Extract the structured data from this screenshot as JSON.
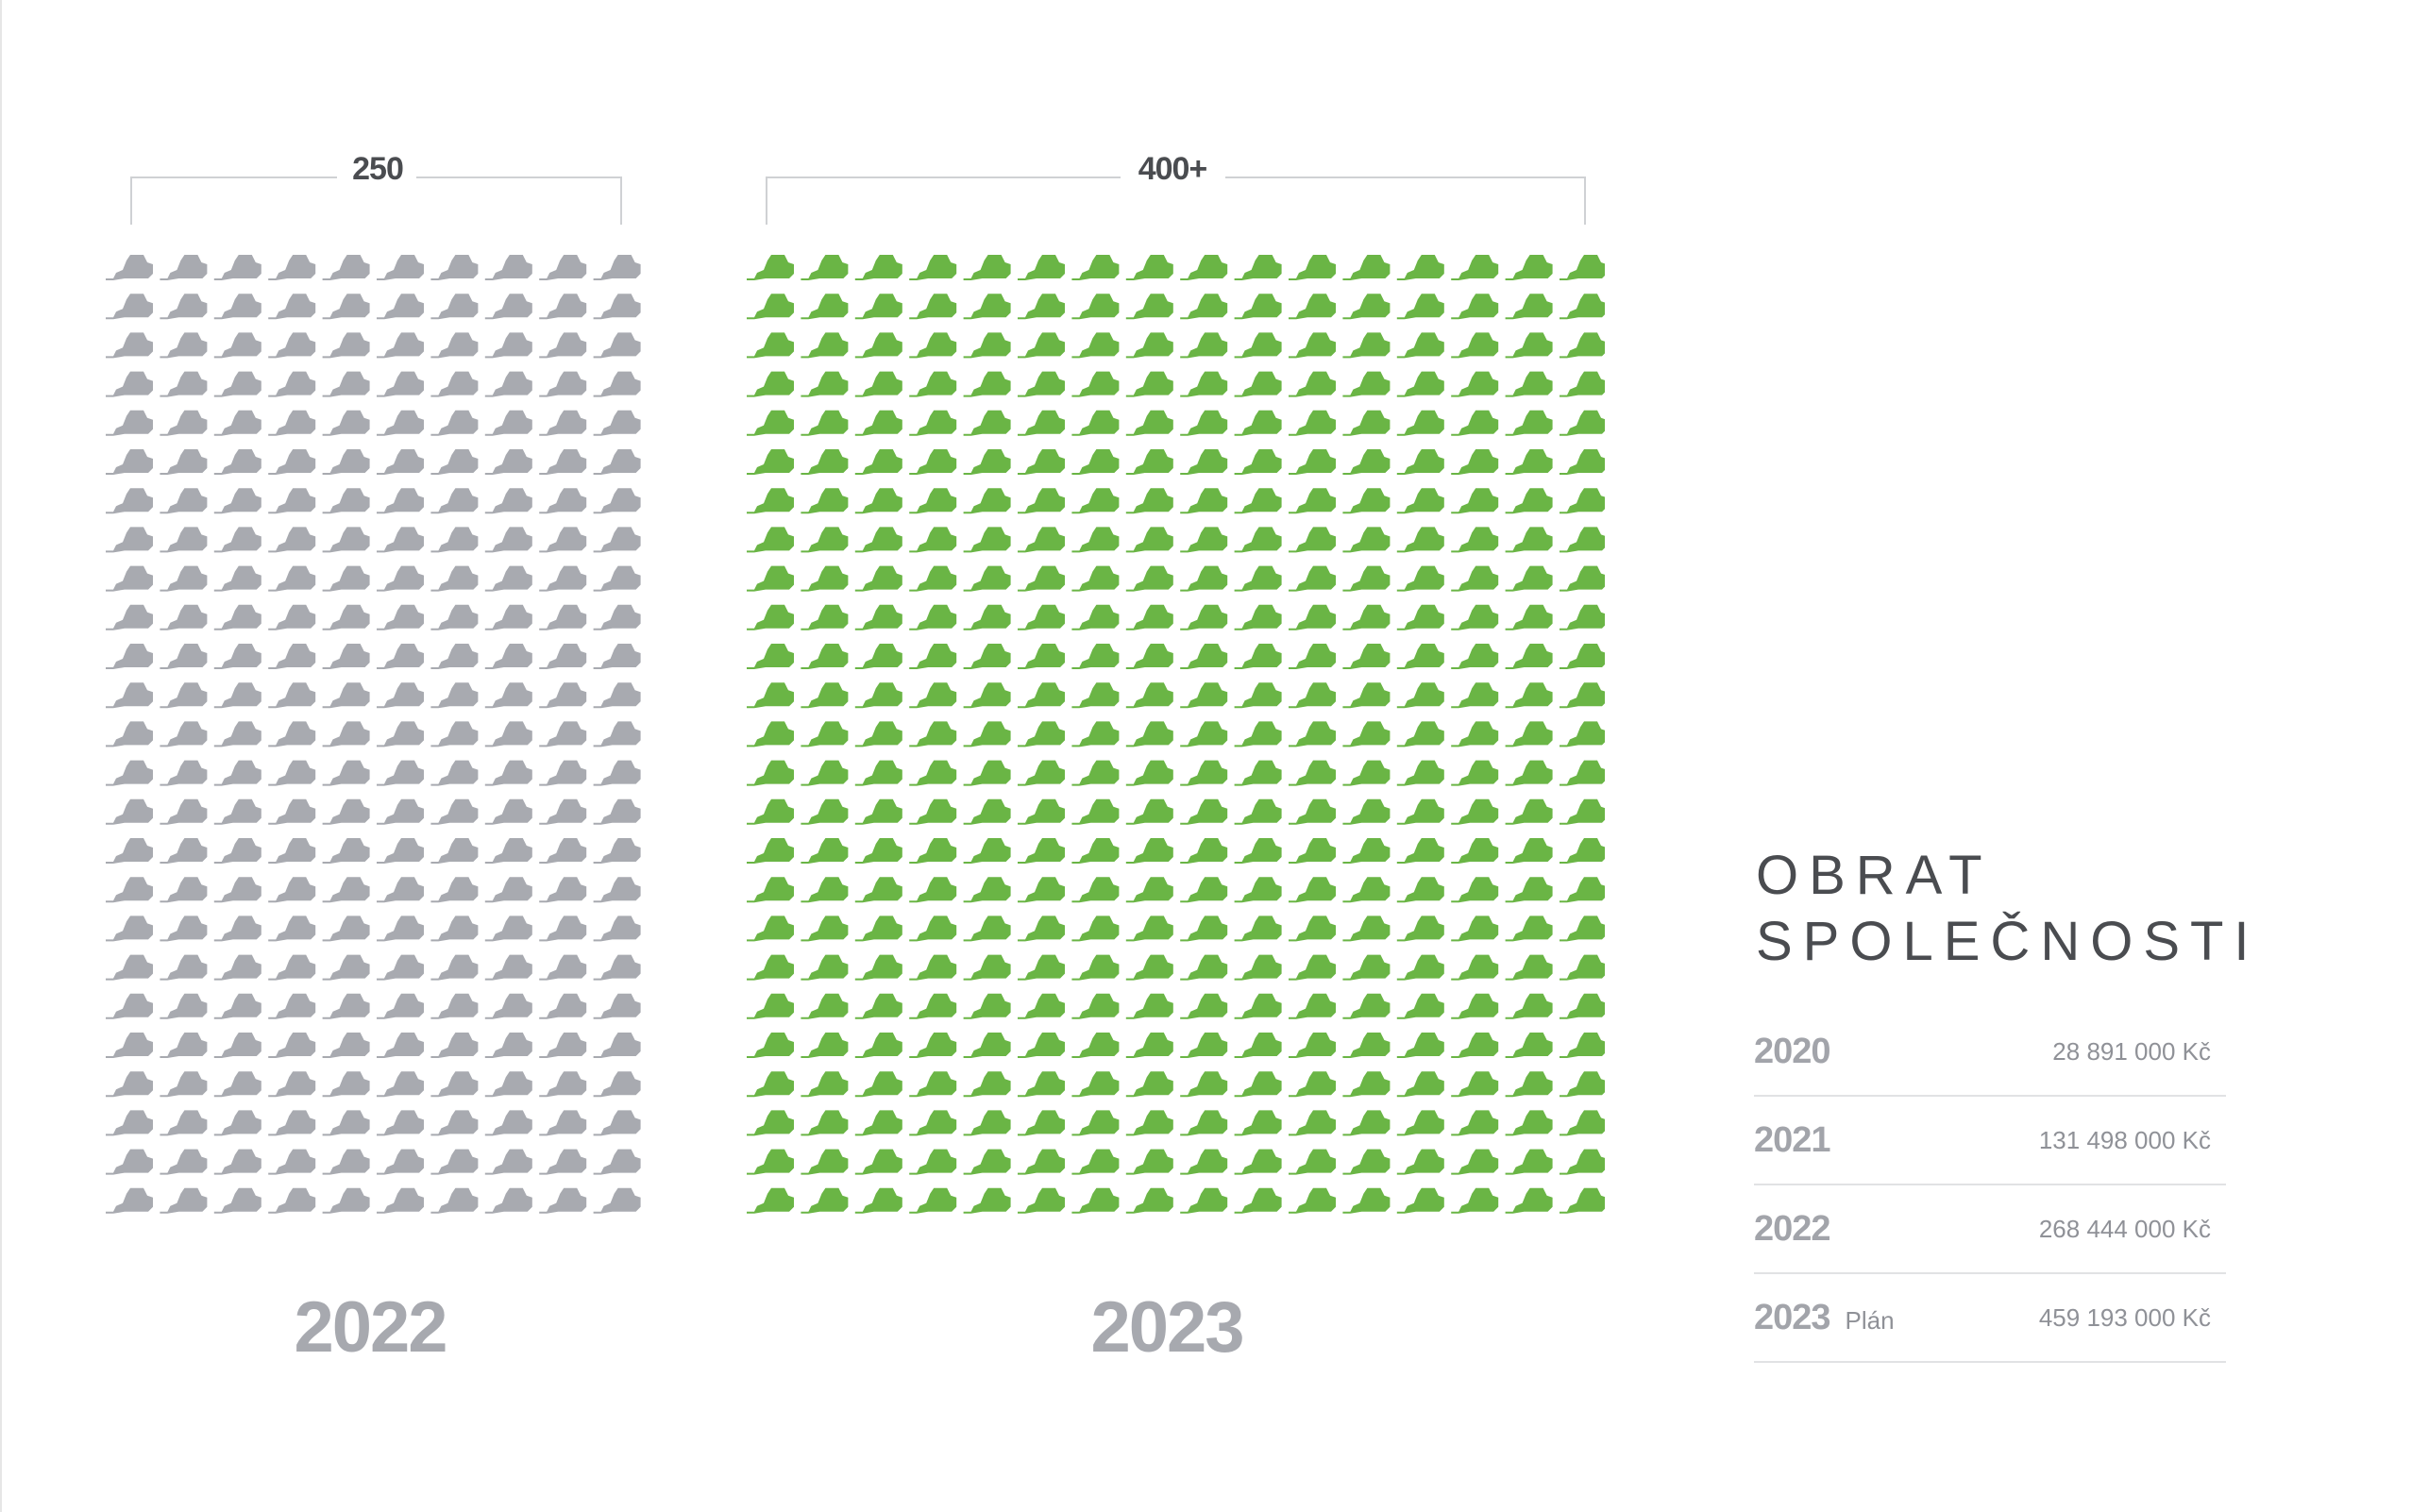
{
  "chart_data": {
    "type": "pictogram",
    "icon": "skid-steer-loader-icon",
    "categories": [
      "2022",
      "2023"
    ],
    "values": [
      250,
      400
    ],
    "value_labels": [
      "250",
      "400+"
    ],
    "colors": [
      "#a8aab0",
      "#6ab545"
    ]
  },
  "turnover": {
    "title_line1": "OBRAT",
    "title_line2": "SPOLEČNOSTI",
    "rows": [
      {
        "year": "2020",
        "note": "",
        "value": "28 891 000 Kč"
      },
      {
        "year": "2021",
        "note": "",
        "value": "131 498 000 Kč"
      },
      {
        "year": "2022",
        "note": "",
        "value": "268 444 000 Kč"
      },
      {
        "year": "2023",
        "note": "Plán",
        "value": "459 193 000 Kč"
      }
    ]
  }
}
